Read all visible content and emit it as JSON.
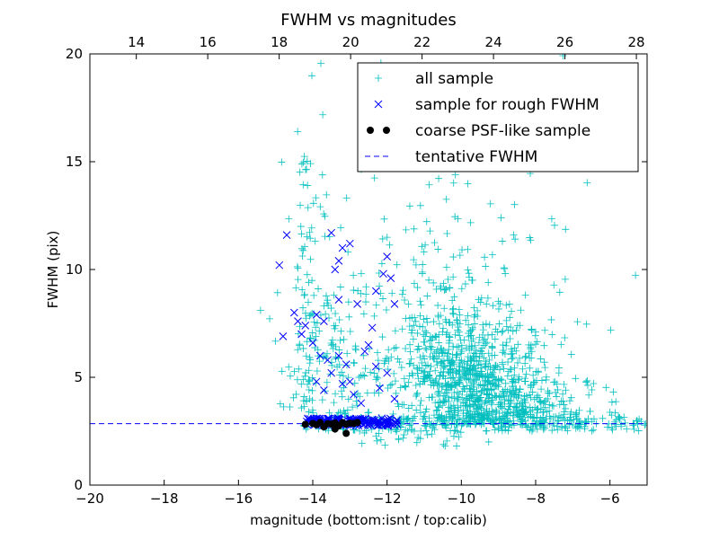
{
  "chart_data": {
    "type": "scatter",
    "title": "FWHM vs magnitudes",
    "xlabel": "magnitude (bottom:isnt / top:calib)",
    "ylabel": "FWHM (pix)",
    "xlim": [
      -20,
      -5
    ],
    "ylim": [
      0,
      20
    ],
    "xticks": [
      -20,
      -18,
      -16,
      -14,
      -12,
      -10,
      -8,
      -6
    ],
    "xtick_labels": [
      "−20",
      "−18",
      "−16",
      "−14",
      "−12",
      "−10",
      "−8",
      "−6"
    ],
    "yticks": [
      0,
      5,
      10,
      15,
      20
    ],
    "ytick_labels": [
      "0",
      "5",
      "10",
      "15",
      "20"
    ],
    "top_axis": {
      "xlim": [
        12.7,
        28.3
      ],
      "ticks": [
        14,
        16,
        18,
        20,
        22,
        24,
        26,
        28
      ],
      "tick_labels": [
        "14",
        "16",
        "18",
        "20",
        "22",
        "24",
        "26",
        "28"
      ]
    },
    "tentative_fwhm": 2.85,
    "legend_position": "top-right",
    "series": [
      {
        "name": "all sample",
        "marker": "+",
        "color": "#00bfbf",
        "description": "dense cloud from about -15 to -5; bulk between -11 and -8 with FWHM 2.5-8; sparse upper tail to 20 near -14.5"
      },
      {
        "name": "sample for rough FWHM",
        "marker": "x",
        "color": "#0000ff",
        "points": [
          [
            -14.9,
            10.2
          ],
          [
            -14.7,
            11.6
          ],
          [
            -14.8,
            6.9
          ],
          [
            -14.4,
            7.6
          ],
          [
            -14.3,
            7.0
          ],
          [
            -14.5,
            8.0
          ],
          [
            -14.2,
            7.4
          ],
          [
            -14.0,
            6.6
          ],
          [
            -13.9,
            7.9
          ],
          [
            -13.7,
            7.6
          ],
          [
            -13.5,
            11.7
          ],
          [
            -13.4,
            10.0
          ],
          [
            -13.3,
            10.4
          ],
          [
            -13.2,
            11.0
          ],
          [
            -13.0,
            11.2
          ],
          [
            -13.3,
            8.6
          ],
          [
            -12.8,
            8.4
          ],
          [
            -13.8,
            6.0
          ],
          [
            -13.6,
            5.8
          ],
          [
            -13.3,
            6.0
          ],
          [
            -13.1,
            5.6
          ],
          [
            -13.0,
            4.8
          ],
          [
            -12.9,
            4.2
          ],
          [
            -12.6,
            6.2
          ],
          [
            -12.5,
            6.5
          ],
          [
            -12.4,
            7.3
          ],
          [
            -12.3,
            9.0
          ],
          [
            -12.1,
            9.8
          ],
          [
            -12.0,
            10.6
          ],
          [
            -11.9,
            9.6
          ],
          [
            -11.8,
            8.4
          ],
          [
            -12.3,
            5.5
          ],
          [
            -12.0,
            5.2
          ],
          [
            -11.8,
            4.0
          ],
          [
            -13.9,
            4.8
          ],
          [
            -13.5,
            5.2
          ],
          [
            -13.2,
            4.7
          ],
          [
            -12.2,
            4.5
          ],
          [
            -13.7,
            4.4
          ],
          [
            -12.7,
            3.8
          ]
        ],
        "band_description": "dense band at FWHM 2.8-3.1 from -14.2 to -11.7"
      },
      {
        "name": "coarse PSF-like sample",
        "marker": "o",
        "color": "#000000",
        "points": [
          [
            -14.2,
            2.82
          ],
          [
            -14.0,
            2.86
          ],
          [
            -13.9,
            2.8
          ],
          [
            -13.8,
            2.9
          ],
          [
            -13.6,
            2.85
          ],
          [
            -13.5,
            2.83
          ],
          [
            -13.4,
            2.88
          ],
          [
            -13.3,
            2.75
          ],
          [
            -13.2,
            2.9
          ],
          [
            -13.1,
            2.82
          ],
          [
            -13.0,
            2.87
          ],
          [
            -12.9,
            2.86
          ],
          [
            -13.1,
            2.4
          ],
          [
            -13.4,
            2.6
          ],
          [
            -13.7,
            2.7
          ],
          [
            -12.8,
            2.9
          ]
        ]
      },
      {
        "name": "tentative FWHM",
        "marker": "dashed-line",
        "color": "#0000ff",
        "y": 2.85
      }
    ]
  }
}
